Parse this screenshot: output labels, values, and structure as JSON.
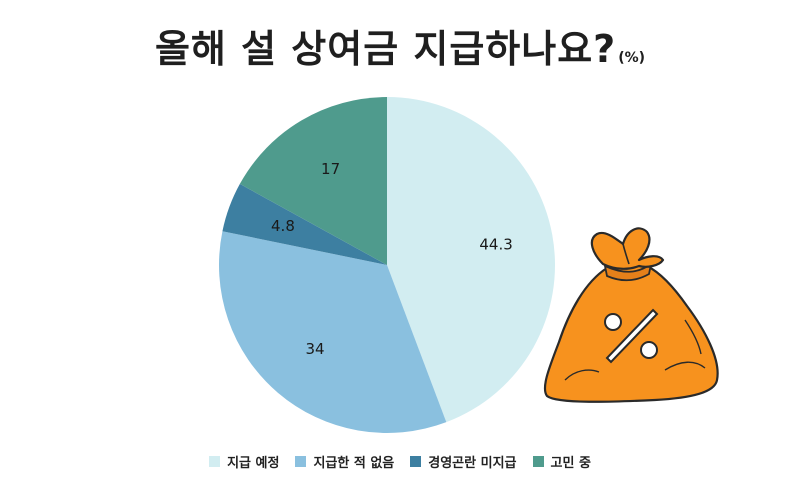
{
  "title": {
    "main": "올해 설 상여금 지급하나요?",
    "unit": "(%)"
  },
  "chart_data": {
    "type": "pie",
    "title": "올해 설 상여금 지급하나요?",
    "unit": "%",
    "start_angle_deg": 0,
    "direction": "clockwise",
    "legend_position": "bottom",
    "categories": [
      "지급 예정",
      "지급한 적 없음",
      "경영곤란 미지급",
      "고민 중"
    ],
    "values": [
      44.3,
      34,
      4.8,
      17
    ],
    "labels": [
      "44.3",
      "34",
      "4.8",
      "17"
    ],
    "colors": [
      "#d2edf1",
      "#8ac0df",
      "#3d7fa1",
      "#4f9b8d"
    ]
  },
  "decoration": {
    "icon": "money-bag-percent-icon",
    "symbol": "%",
    "bag_color": "#f7921e"
  }
}
